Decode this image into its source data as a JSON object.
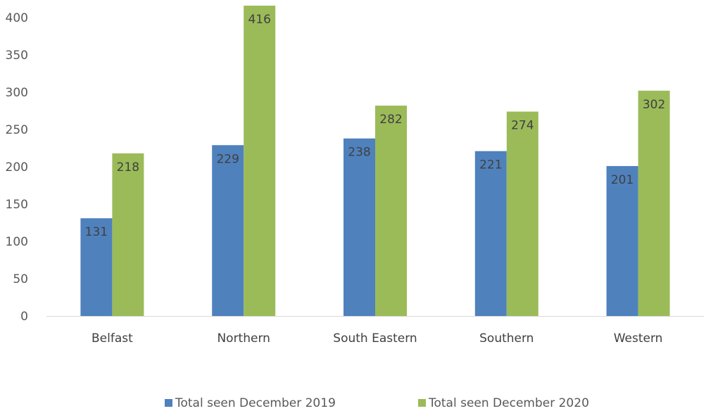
{
  "chart_data": {
    "type": "bar",
    "categories": [
      "Belfast",
      "Northern",
      "South Eastern",
      "Southern",
      "Western"
    ],
    "series": [
      {
        "name": "Total seen December 2019",
        "color": "#4f81bd",
        "values": [
          131,
          229,
          238,
          221,
          201
        ]
      },
      {
        "name": "Total seen December 2020",
        "color": "#9bbb59",
        "values": [
          218,
          416,
          282,
          274,
          302
        ]
      }
    ],
    "ylim": [
      0,
      400
    ],
    "yticks": [
      0,
      50,
      100,
      150,
      200,
      250,
      300,
      350,
      400
    ],
    "title": "",
    "xlabel": "",
    "ylabel": "",
    "grid": false,
    "legend_position": "bottom"
  }
}
